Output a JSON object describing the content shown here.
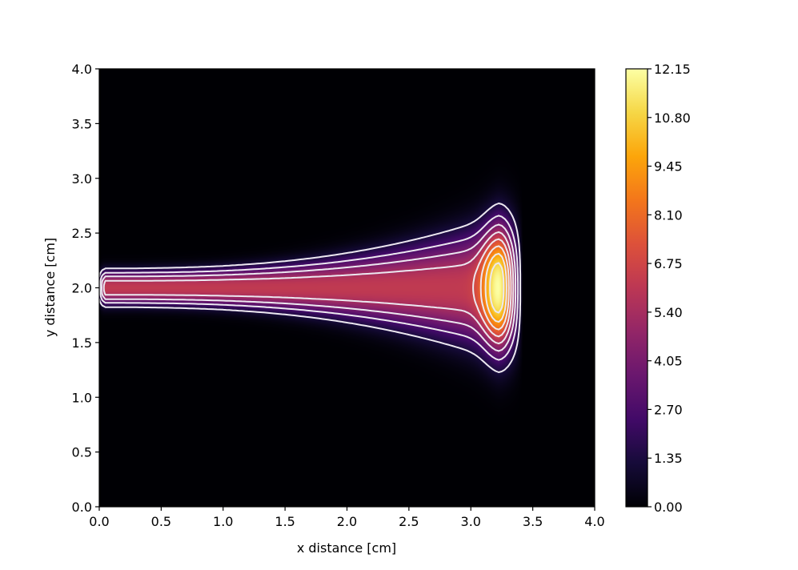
{
  "chart_data": {
    "type": "heatmap",
    "title": "",
    "xlabel": "x distance [cm]",
    "ylabel": "y distance [cm]",
    "xlim": [
      0.0,
      4.0
    ],
    "ylim": [
      0.0,
      4.0
    ],
    "x_ticks": [
      "0.0",
      "0.5",
      "1.0",
      "1.5",
      "2.0",
      "2.5",
      "3.0",
      "3.5",
      "4.0"
    ],
    "y_ticks": [
      "0.0",
      "0.5",
      "1.0",
      "1.5",
      "2.0",
      "2.5",
      "3.0",
      "3.5",
      "4.0"
    ],
    "colormap": "inferno",
    "colorbar": {
      "min": 0.0,
      "max": 12.15,
      "ticks": [
        "0.00",
        "1.35",
        "2.70",
        "4.05",
        "5.40",
        "6.75",
        "8.10",
        "9.45",
        "10.80",
        "12.15"
      ]
    },
    "contour_color": "#ece8f0",
    "field": {
      "jet_axis_y": 2.0,
      "jet_start_x": 0.0,
      "peak_x": 3.22,
      "peak_value": 12.15,
      "trail_value": 6.2,
      "half_width_at_start": 0.2,
      "half_width_at_peak": 0.75,
      "extent_x_max": 3.42
    },
    "contour_levels": [
      1.35,
      2.7,
      4.05,
      5.4,
      6.75,
      8.1,
      9.45,
      10.8
    ]
  }
}
